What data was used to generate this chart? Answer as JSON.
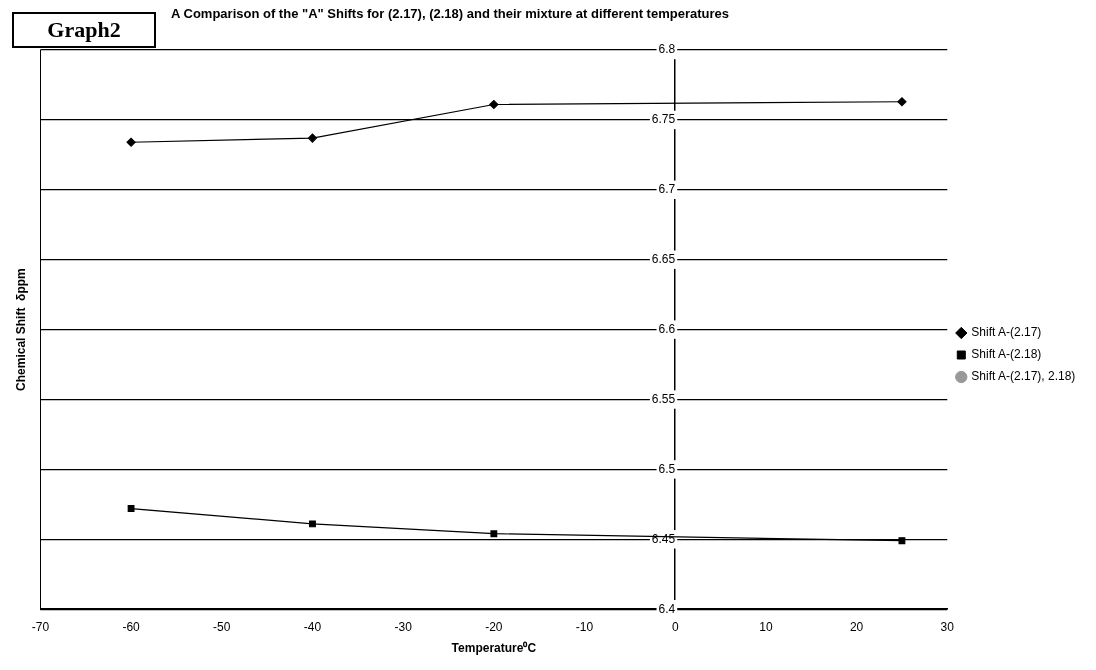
{
  "chart_data": {
    "type": "line",
    "title": "A Comparison of the \"A\" Shifts for (2.17), (2.18) and their mixture at different temperatures",
    "xlabel": "Temperature⁰C",
    "ylabel": "Chemical Shift  δppm",
    "annotations": [
      "Graph2"
    ],
    "x": [
      -60,
      -40,
      -20,
      25
    ],
    "series": [
      {
        "name": "Shift A-(2.17)",
        "color": "#000000",
        "marker": "diamond",
        "values": [
          6.734,
          6.737,
          6.761,
          6.763
        ]
      },
      {
        "name": "Shift A-(2.18)",
        "color": "#000000",
        "marker": "square",
        "values": [
          6.472,
          6.461,
          6.454,
          6.449
        ]
      },
      {
        "name": "Shift A-(2.17), 2.18)",
        "color": "#999999",
        "marker": "circle",
        "values": [
          null,
          null,
          null,
          null
        ]
      }
    ],
    "xlim": [
      -70,
      30
    ],
    "xticks": [
      -70,
      -60,
      -50,
      -40,
      -30,
      -20,
      -10,
      0,
      10,
      20,
      30
    ],
    "ylim": [
      6.4,
      6.8
    ],
    "yticks": [
      6.4,
      6.45,
      6.5,
      6.55,
      6.6,
      6.65,
      6.7,
      6.75,
      6.8
    ],
    "grid": "y",
    "legend": "right"
  }
}
